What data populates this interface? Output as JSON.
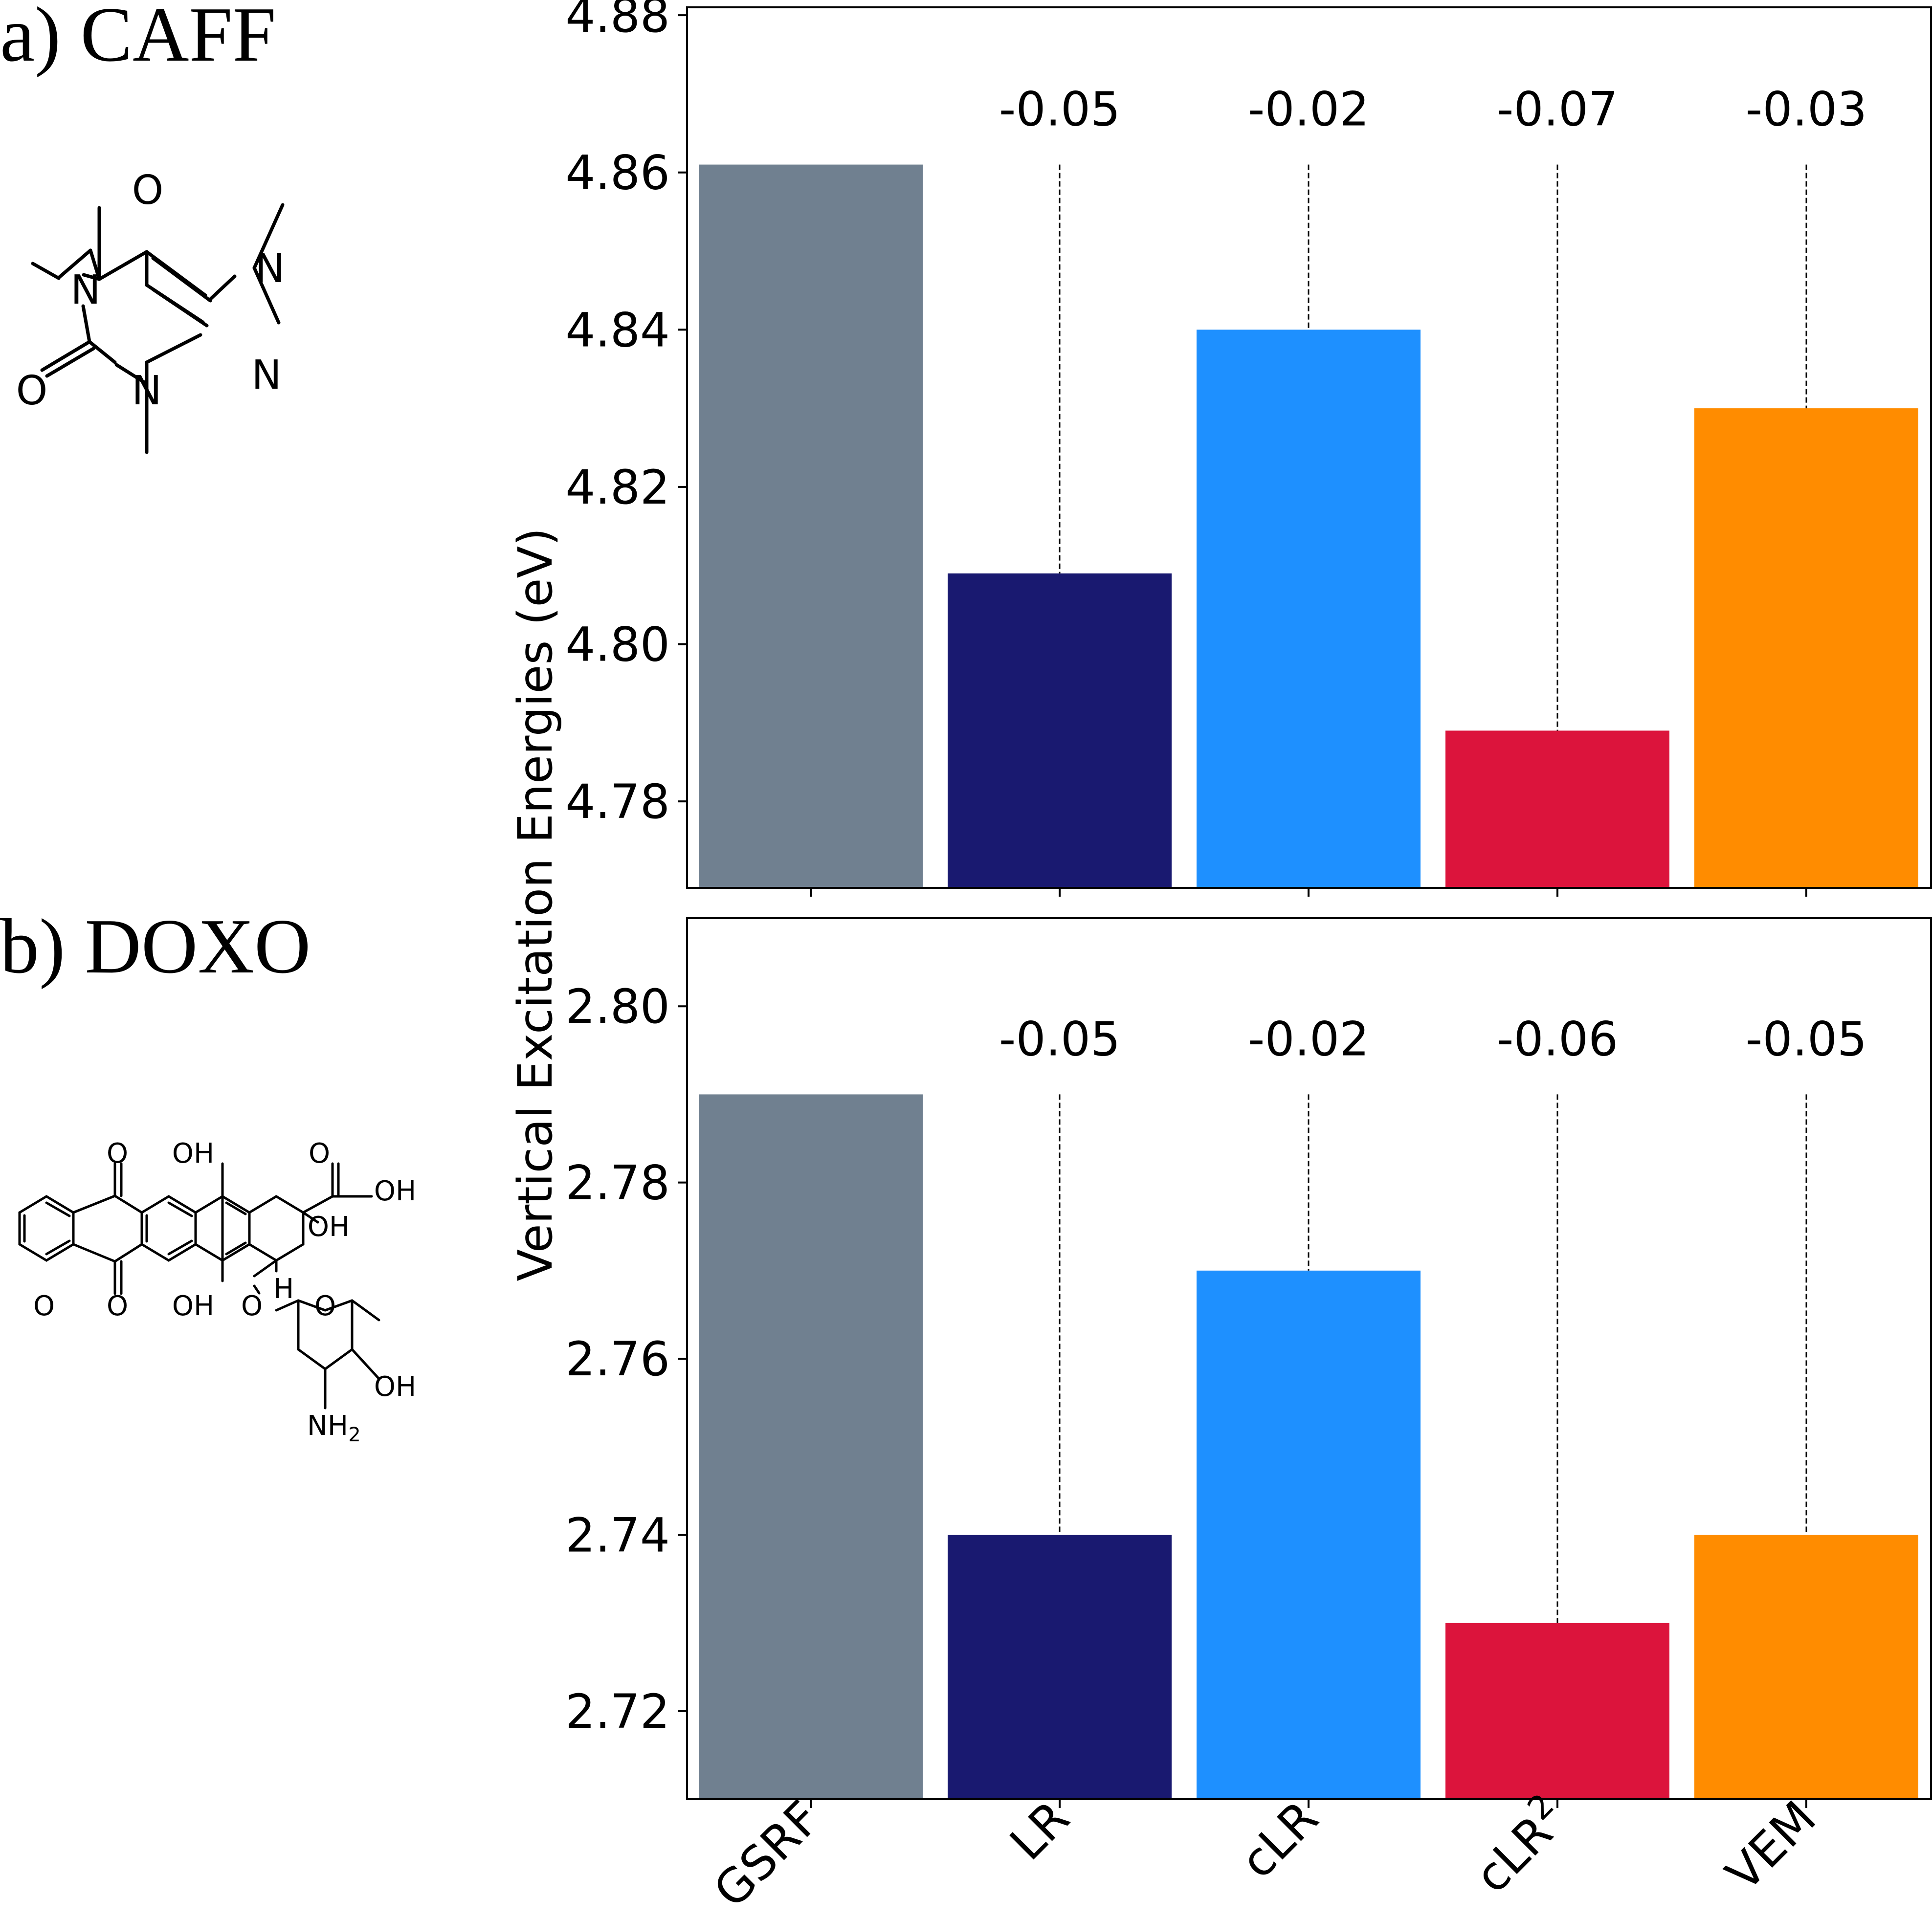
{
  "panels": [
    {
      "label": "a) CAFF"
    },
    {
      "label": "b) DOXO"
    }
  ],
  "molecules": {
    "caff": {
      "atom_labels": [
        "O",
        "N",
        "N",
        "N",
        "N",
        "O"
      ]
    },
    "doxo": {
      "atom_labels": [
        "O",
        "OH",
        "O",
        "OH",
        "OH",
        "O",
        "O",
        "OH",
        "OH",
        "H",
        "O",
        "O",
        "OH",
        "NH",
        "2"
      ]
    }
  },
  "colors": {
    "GSRF": "#708090",
    "LR": "#191970",
    "cLR": "#1e90ff",
    "cLR2": "#dc143c",
    "VEM": "#ff8c00"
  },
  "chart_data": [
    {
      "type": "bar",
      "panel": "a) CAFF",
      "categories": [
        "GSRF",
        "LR",
        "cLR",
        "cLR2",
        "VEM"
      ],
      "values": [
        4.861,
        4.809,
        4.84,
        4.789,
        4.83
      ],
      "deltas": [
        "",
        "-0.05",
        "-0.02",
        "-0.07",
        "-0.03"
      ],
      "ylim": [
        4.769,
        4.881
      ],
      "yticks": [
        "4.78",
        "4.80",
        "4.82",
        "4.84",
        "4.86",
        "4.88"
      ],
      "xlabel": "",
      "ylabel": "Vertical Excitation Energies (eV)",
      "grid": false
    },
    {
      "type": "bar",
      "panel": "b) DOXO",
      "categories": [
        "GSRF",
        "LR",
        "cLR",
        "cLR2",
        "VEM"
      ],
      "values": [
        2.79,
        2.74,
        2.77,
        2.73,
        2.74
      ],
      "deltas": [
        "",
        "-0.05",
        "-0.02",
        "-0.06",
        "-0.05"
      ],
      "ylim": [
        2.71,
        2.81
      ],
      "yticks": [
        "2.72",
        "2.74",
        "2.76",
        "2.78",
        "2.80"
      ],
      "xlabel": "",
      "ylabel": "Vertical Excitation Energies (eV)",
      "grid": false
    }
  ],
  "xtick_labels": [
    {
      "base": "GSRF",
      "sup": ""
    },
    {
      "base": "LR",
      "sup": ""
    },
    {
      "base": "cLR",
      "sup": ""
    },
    {
      "base": "cLR",
      "sup": "2"
    },
    {
      "base": "VEM",
      "sup": ""
    }
  ]
}
